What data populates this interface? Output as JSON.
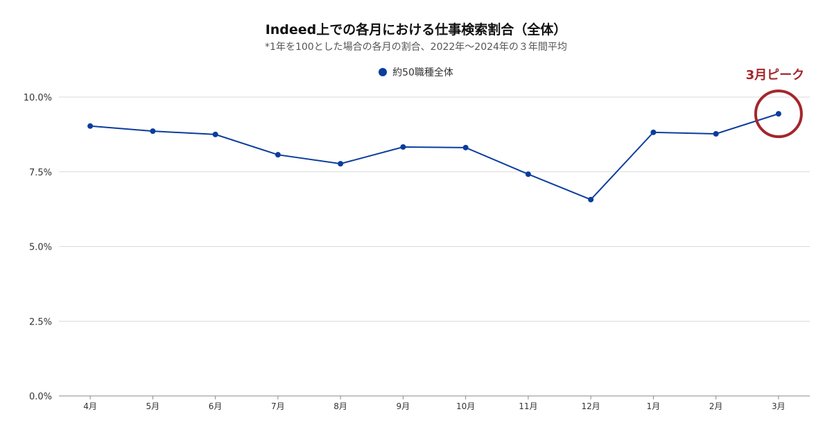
{
  "chart_data": {
    "type": "line",
    "title": "Indeed上での各月における仕事検索割合（全体）",
    "subtitle": "*1年を100とした場合の各月の割合、2022年～2024年の３年間平均",
    "xlabel": "",
    "ylabel": "",
    "ylim": [
      0,
      10
    ],
    "yticks": [
      "0.0%",
      "2.5%",
      "5.0%",
      "7.5%",
      "10.0%"
    ],
    "ytick_values": [
      0,
      2.5,
      5,
      7.5,
      10
    ],
    "grid": true,
    "legend_position": "top-center",
    "categories": [
      "4月",
      "5月",
      "6月",
      "7月",
      "8月",
      "9月",
      "10月",
      "11月",
      "12月",
      "1月",
      "2月",
      "3月"
    ],
    "series": [
      {
        "name": "約50職種全体",
        "color": "#0b3d9c",
        "values": [
          9.03,
          8.86,
          8.75,
          8.07,
          7.77,
          8.33,
          8.31,
          7.42,
          6.57,
          8.82,
          8.77,
          9.44
        ]
      }
    ],
    "annotation": {
      "text": "3月ピーク",
      "target_index": 11,
      "color": "#a3262c"
    }
  }
}
